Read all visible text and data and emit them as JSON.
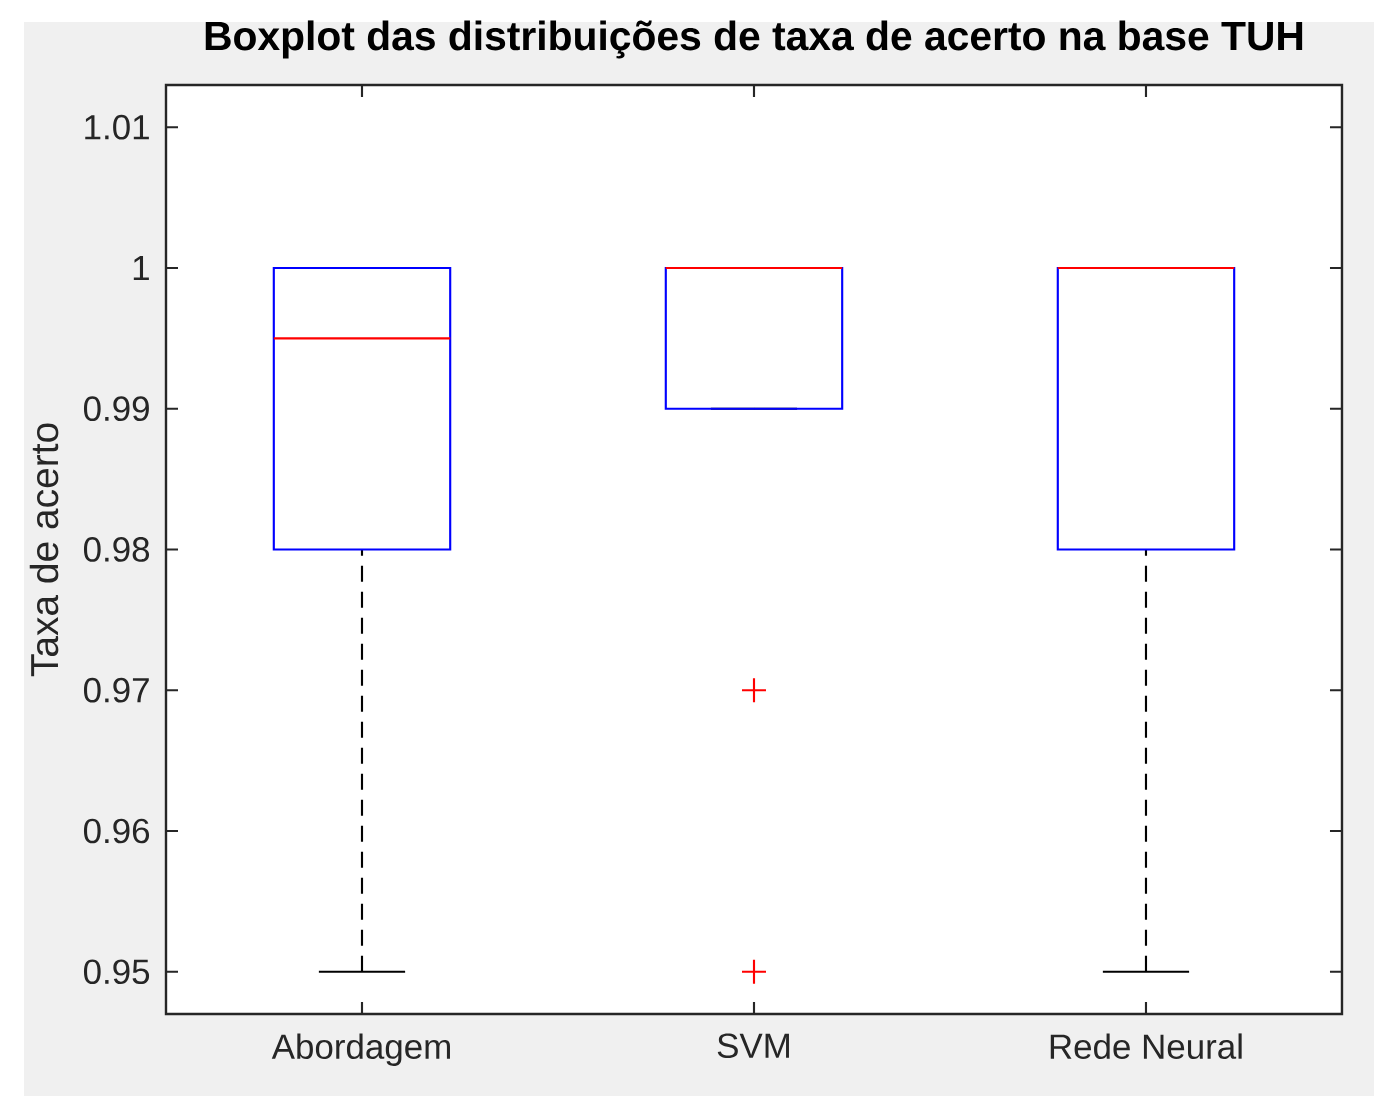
{
  "chart_data": {
    "type": "box",
    "title": "Boxplot das distribuições de taxa de acerto na base TUH",
    "ylabel": "Taxa de acerto",
    "categories": [
      "Abordagem",
      "SVM",
      "Rede Neural"
    ],
    "ylim": [
      0.947,
      1.013
    ],
    "yticks": [
      0.95,
      0.96,
      0.97,
      0.98,
      0.99,
      1,
      1.01
    ],
    "color": "#0000ff",
    "marker": "cross",
    "boxes": [
      {
        "low": 0.95,
        "q1": 0.98,
        "median": 0.995,
        "q3": 1,
        "high": 1
      },
      {
        "low": 0.99,
        "q1": 0.99,
        "median": 1,
        "q3": 1,
        "high": 1,
        "outliers": [
          0.97,
          0.95
        ]
      },
      {
        "low": 0.95,
        "q1": 0.98,
        "median": 1,
        "q3": 1,
        "high": 1
      }
    ]
  }
}
